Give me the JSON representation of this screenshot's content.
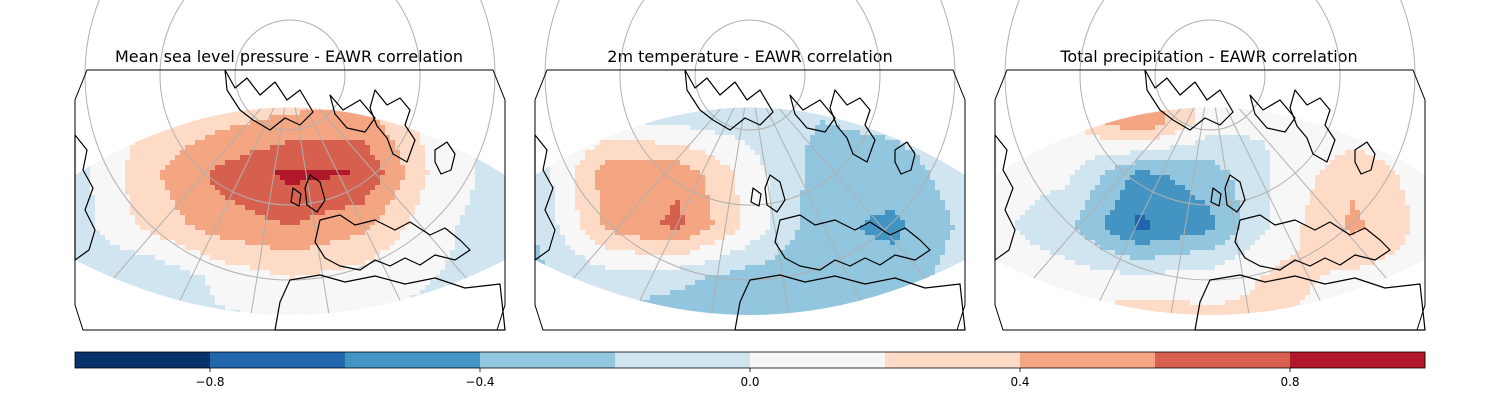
{
  "chart_data": {
    "type": "heatmap",
    "panels": [
      {
        "title": "Mean sea level pressure - EAWR correlation",
        "field": [
          [
            0.05,
            0.05,
            0.1,
            0.15,
            0.15,
            0.1,
            0.05
          ],
          [
            -0.05,
            0.2,
            0.35,
            0.45,
            0.5,
            0.1,
            -0.05
          ],
          [
            -0.1,
            0.35,
            0.65,
            0.85,
            0.8,
            0.15,
            -0.1
          ],
          [
            -0.1,
            0.25,
            0.5,
            0.6,
            0.45,
            0.05,
            -0.1
          ],
          [
            -0.15,
            -0.2,
            0.05,
            0.2,
            0.1,
            0.0,
            -0.05
          ],
          [
            -0.15,
            -0.1,
            -0.05,
            -0.05,
            -0.05,
            -0.05,
            -0.05
          ]
        ]
      },
      {
        "title": "2m temperature - EAWR correlation",
        "field": [
          [
            0.15,
            0.15,
            0.1,
            0.05,
            0.05,
            0.05,
            0.05
          ],
          [
            -0.05,
            0.05,
            -0.05,
            -0.1,
            -0.2,
            -0.15,
            -0.1
          ],
          [
            -0.15,
            0.5,
            0.55,
            0.1,
            -0.3,
            -0.3,
            -0.1
          ],
          [
            -0.2,
            0.45,
            0.65,
            0.15,
            -0.35,
            -0.45,
            -0.15
          ],
          [
            -0.25,
            -0.1,
            -0.15,
            -0.3,
            -0.35,
            -0.3,
            -0.1
          ],
          [
            -0.15,
            -0.25,
            -0.35,
            -0.3,
            -0.2,
            -0.1,
            -0.05
          ]
        ]
      },
      {
        "title": "Total precipitation - EAWR correlation",
        "field": [
          [
            0.05,
            0.1,
            0.55,
            0.15,
            0.05,
            0.05,
            0.05
          ],
          [
            0.05,
            0.15,
            0.6,
            0.1,
            0.0,
            0.05,
            0.05
          ],
          [
            0.1,
            0.05,
            -0.45,
            -0.3,
            0.05,
            0.35,
            0.1
          ],
          [
            0.05,
            -0.15,
            -0.65,
            -0.45,
            0.1,
            0.45,
            0.15
          ],
          [
            0.1,
            0.1,
            0.05,
            0.1,
            0.25,
            0.15,
            0.1
          ],
          [
            0.15,
            0.25,
            0.4,
            0.3,
            0.2,
            0.1,
            0.05
          ]
        ]
      }
    ],
    "colorbar": {
      "range": [
        -1.0,
        1.0
      ],
      "levels": [
        -1.0,
        -0.8,
        -0.6,
        -0.4,
        -0.2,
        0.0,
        0.2,
        0.4,
        0.6,
        0.8,
        1.0
      ],
      "colors": [
        "#08306b",
        "#2166ac",
        "#4393c3",
        "#92c5de",
        "#d1e5f0",
        "#f7f7f7",
        "#fddbc7",
        "#f4a582",
        "#d6604d",
        "#b2182b",
        "#67001f"
      ],
      "tick_values": [
        -0.8,
        -0.4,
        0.0,
        0.4,
        0.8
      ],
      "tick_labels": [
        "−0.8",
        "−0.4",
        "0.0",
        "0.4",
        "0.8"
      ]
    },
    "gridlines": true,
    "coastlines": true
  }
}
